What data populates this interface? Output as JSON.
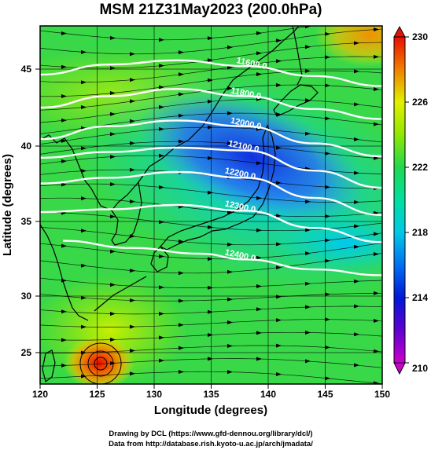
{
  "title": "MSM 21Z31May2023 (200.0hPa)",
  "xlabel": "Longitude (degrees)",
  "ylabel": "Latitude  (degrees)",
  "credits": [
    "Drawing by DCL (https://www.gfd-dennou.org/library/dcl/)",
    "Data from http://database.rish.kyoto-u.ac.jp/arch/jmadata/"
  ],
  "colors": {
    "low": "#cc00cc",
    "blue": "#0018d8",
    "cyan": "#00c8e8",
    "green": "#20d850",
    "yellow": "#d8f000",
    "orange": "#f08000",
    "high": "#e81000"
  },
  "chart_data": {
    "type": "heatmap",
    "xlim": [
      120,
      150
    ],
    "ylim": [
      23,
      48
    ],
    "xticks": [
      120,
      125,
      130,
      135,
      140,
      145,
      150
    ],
    "yticks": [
      25,
      30,
      35,
      40,
      45
    ],
    "colorbar": {
      "min": 210,
      "max": 230,
      "ticks": [
        210,
        214,
        218,
        222,
        226,
        230
      ]
    },
    "contours": [
      {
        "label": "11600.0",
        "lon": 138.5,
        "lat": 45.2,
        "points": [
          [
            120,
            44.6
          ],
          [
            126,
            45.3
          ],
          [
            132,
            45.6
          ],
          [
            138,
            45.2
          ],
          [
            144,
            44.5
          ],
          [
            150,
            43.8
          ]
        ]
      },
      {
        "label": "11800.0",
        "lon": 138.0,
        "lat": 43.1,
        "points": [
          [
            120,
            42.3
          ],
          [
            126,
            43.1
          ],
          [
            132,
            43.6
          ],
          [
            138,
            43.1
          ],
          [
            144,
            42.2
          ],
          [
            150,
            41.5
          ]
        ]
      },
      {
        "label": "12000.0",
        "lon": 138.0,
        "lat": 41.0,
        "points": [
          [
            120,
            40.1
          ],
          [
            126,
            41.0
          ],
          [
            132,
            41.4
          ],
          [
            138,
            41.0
          ],
          [
            144,
            39.8
          ],
          [
            150,
            38.9
          ]
        ]
      },
      {
        "label": "12100.0",
        "lon": 137.8,
        "lat": 39.4,
        "points": [
          [
            120,
            38.8
          ],
          [
            126,
            39.2
          ],
          [
            132,
            39.5
          ],
          [
            138,
            39.3
          ],
          [
            144,
            37.9
          ],
          [
            150,
            36.7
          ]
        ]
      },
      {
        "label": "12200.0",
        "lon": 137.5,
        "lat": 37.5,
        "points": [
          [
            120,
            37.0
          ],
          [
            126,
            37.4
          ],
          [
            132,
            37.8
          ],
          [
            138,
            37.4
          ],
          [
            144,
            36.0
          ],
          [
            150,
            34.8
          ]
        ]
      },
      {
        "label": "12300.0",
        "lon": 137.5,
        "lat": 35.2,
        "points": [
          [
            120,
            35.0
          ],
          [
            126,
            35.2
          ],
          [
            132,
            35.5
          ],
          [
            138,
            35.1
          ],
          [
            144,
            33.9
          ],
          [
            150,
            32.9
          ]
        ]
      },
      {
        "label": "12400.0",
        "lon": 137.5,
        "lat": 31.8,
        "points": [
          [
            122,
            33.0
          ],
          [
            128,
            32.5
          ],
          [
            134,
            32.1
          ],
          [
            138,
            31.7
          ],
          [
            144,
            31.0
          ],
          [
            150,
            30.6
          ]
        ]
      }
    ]
  }
}
